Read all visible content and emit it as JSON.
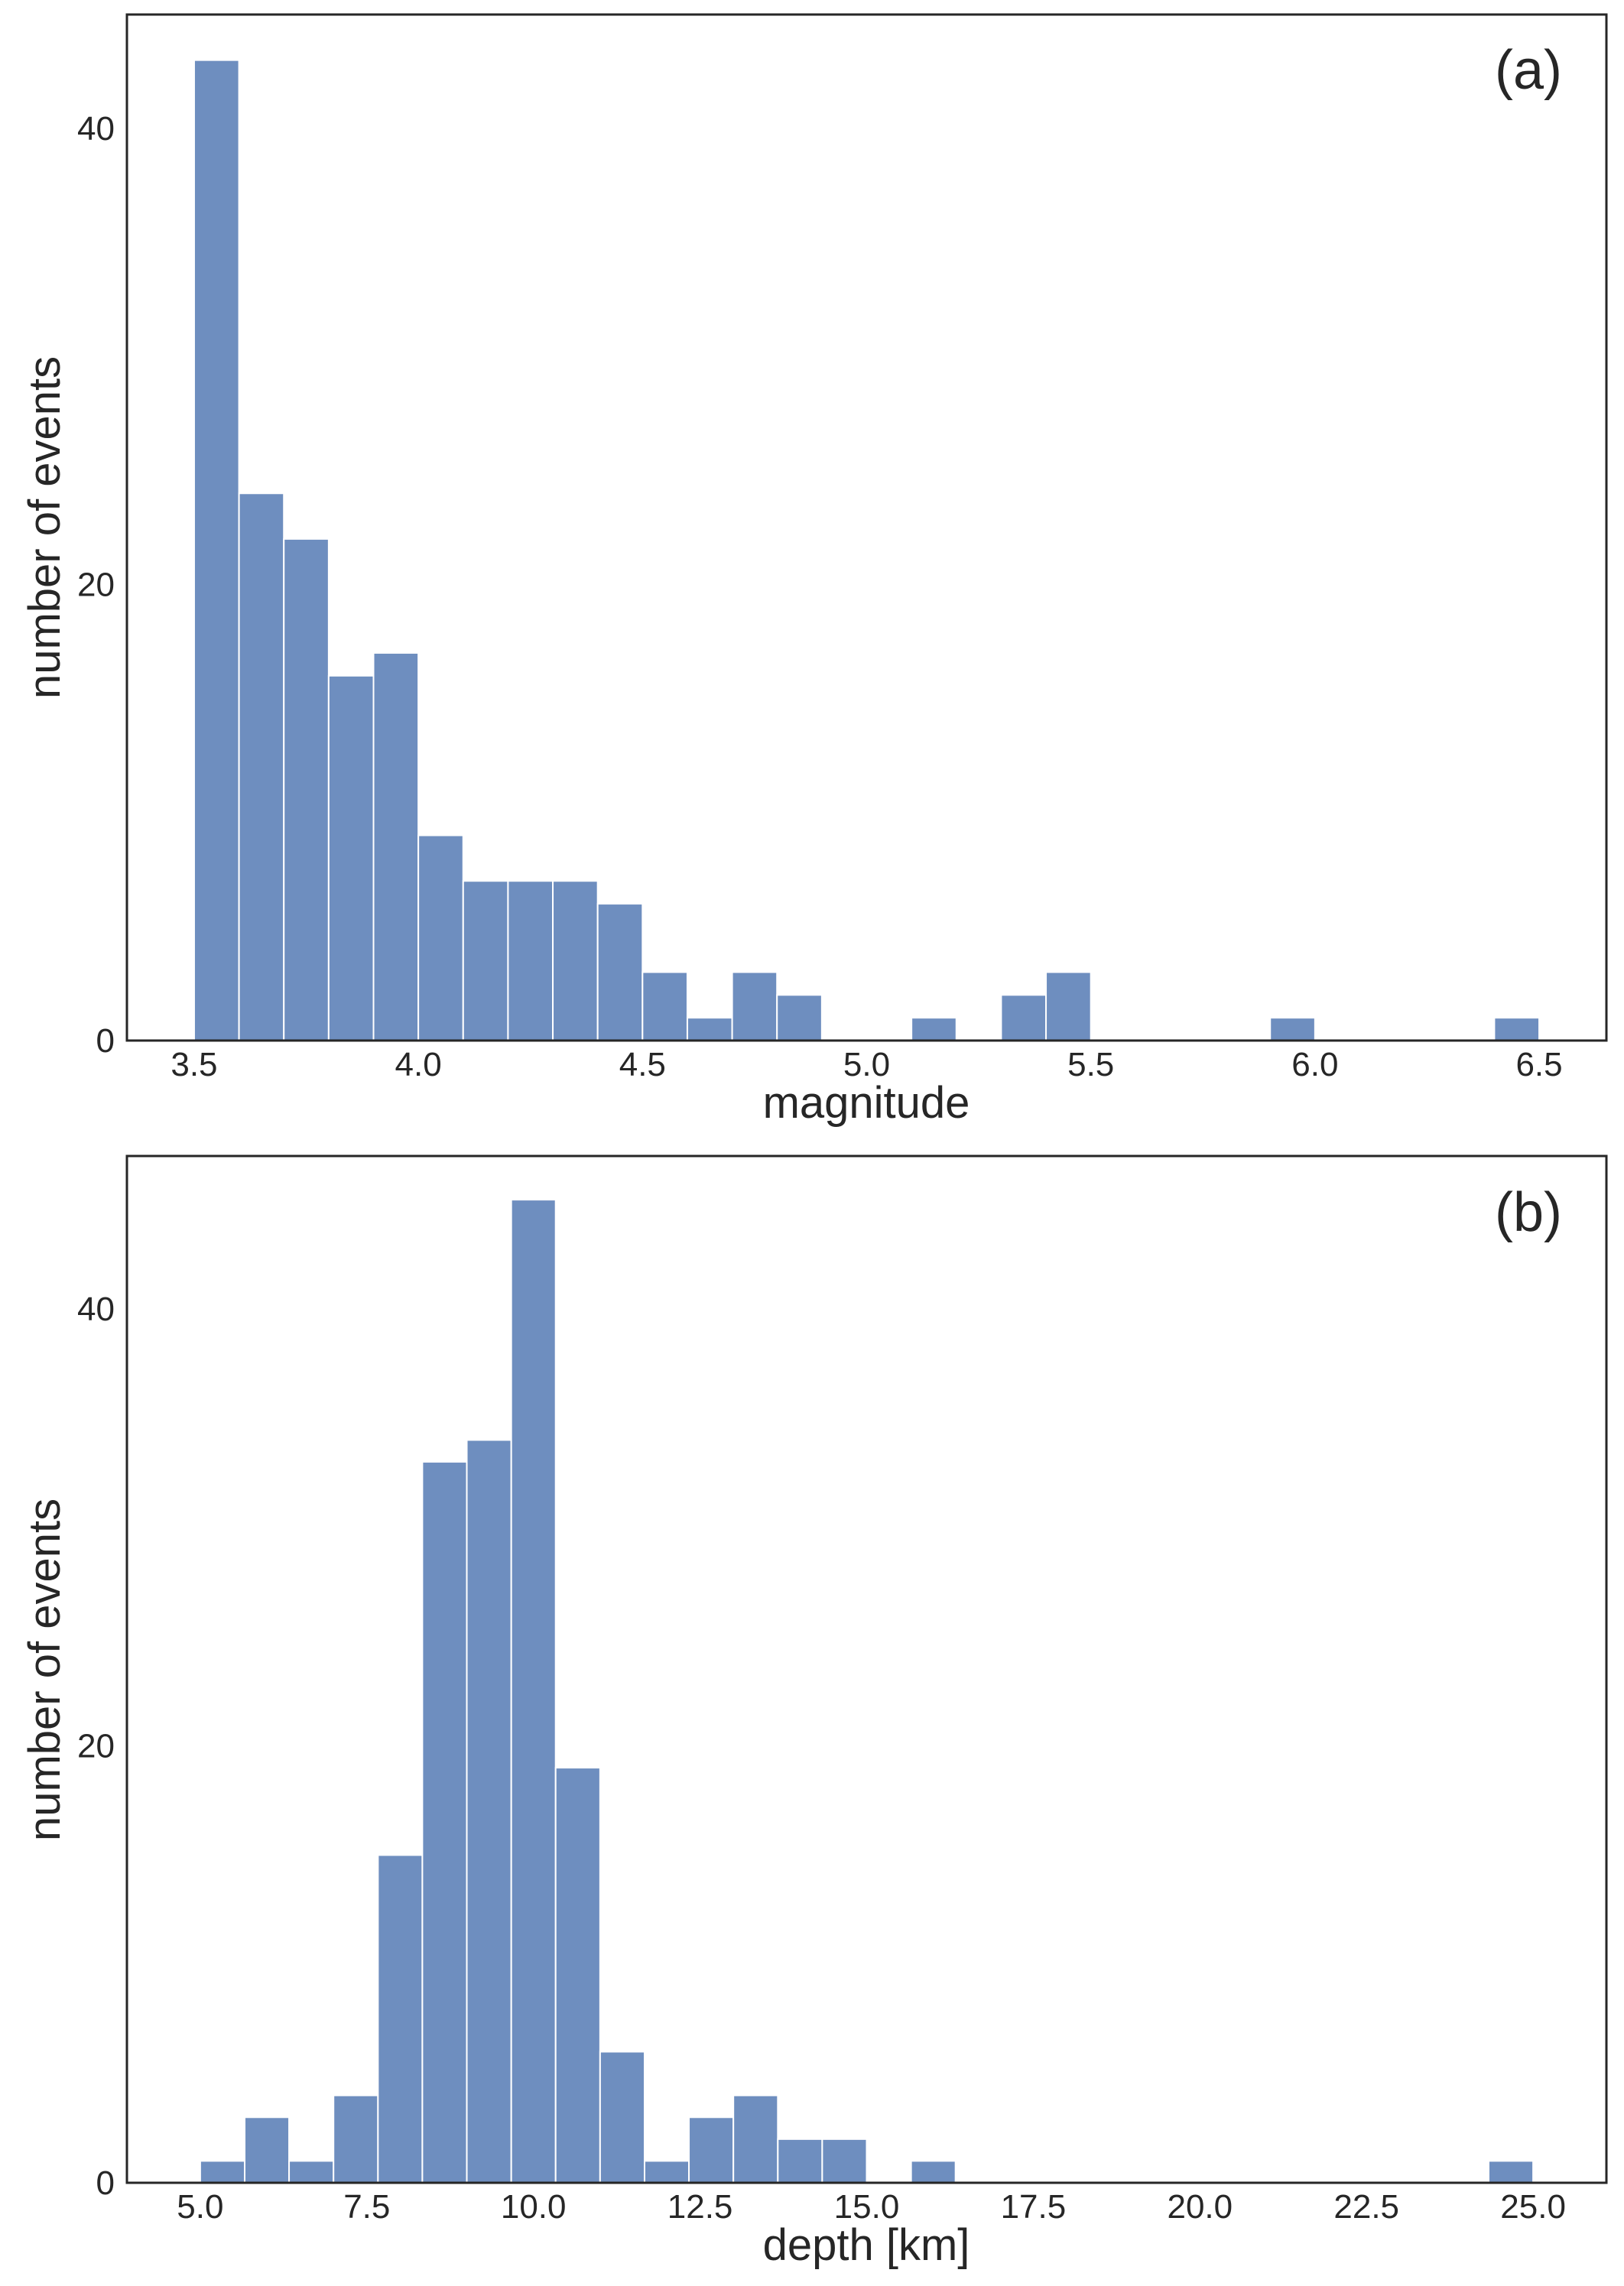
{
  "figure": {
    "colors": {
      "bar": "#6e8ebf",
      "bar_edge": "#ffffff",
      "axes": "#262626",
      "background": "#ffffff"
    }
  },
  "chart_data": [
    {
      "type": "bar",
      "panel_label": "(a)",
      "title": "",
      "xlabel": "magnitude",
      "ylabel": "number of events",
      "xlim": [
        3.35,
        6.65
      ],
      "ylim": [
        0,
        45
      ],
      "xticks": [
        3.5,
        4.0,
        4.5,
        5.0,
        5.5,
        6.0,
        6.5
      ],
      "xtick_labels": [
        "3.5",
        "4.0",
        "4.5",
        "5.0",
        "5.5",
        "6.0",
        "6.5"
      ],
      "yticks": [
        0,
        20,
        40
      ],
      "ytick_labels": [
        "0",
        "20",
        "40"
      ],
      "grid": false,
      "bin_edges": [
        3.5,
        3.6,
        3.7,
        3.8,
        3.9,
        4.0,
        4.1,
        4.2,
        4.3,
        4.4,
        4.5,
        4.6,
        4.7,
        4.8,
        4.9,
        5.0,
        5.1,
        5.2,
        5.3,
        5.4,
        5.5,
        5.6,
        5.7,
        5.8,
        5.9,
        6.0,
        6.1,
        6.2,
        6.3,
        6.4,
        6.5
      ],
      "values": [
        43,
        24,
        22,
        16,
        17,
        9,
        7,
        7,
        7,
        6,
        3,
        1,
        3,
        2,
        0,
        0,
        1,
        0,
        2,
        3,
        0,
        0,
        0,
        0,
        1,
        0,
        0,
        0,
        0,
        1
      ]
    },
    {
      "type": "bar",
      "panel_label": "(b)",
      "title": "",
      "xlabel": "depth [km]",
      "ylabel": "number of events",
      "xlim": [
        3.9,
        26.1
      ],
      "ylim": [
        0,
        47
      ],
      "xticks": [
        5.0,
        7.5,
        10.0,
        12.5,
        15.0,
        17.5,
        20.0,
        22.5,
        25.0
      ],
      "xtick_labels": [
        "5.0",
        "7.5",
        "10.0",
        "12.5",
        "15.0",
        "17.5",
        "20.0",
        "22.5",
        "25.0"
      ],
      "yticks": [
        0,
        20,
        40
      ],
      "ytick_labels": [
        "0",
        "20",
        "40"
      ],
      "grid": false,
      "bin_edges": [
        5.0,
        5.667,
        6.333,
        7.0,
        7.667,
        8.333,
        9.0,
        9.667,
        10.333,
        11.0,
        11.667,
        12.333,
        13.0,
        13.667,
        14.333,
        15.0,
        15.667,
        16.333,
        17.0,
        17.667,
        18.333,
        19.0,
        19.667,
        20.333,
        21.0,
        21.667,
        22.333,
        23.0,
        23.667,
        24.333,
        25.0
      ],
      "values": [
        1,
        3,
        1,
        4,
        15,
        33,
        34,
        45,
        19,
        6,
        1,
        3,
        4,
        2,
        2,
        0,
        1,
        0,
        0,
        0,
        0,
        0,
        0,
        0,
        0,
        0,
        0,
        0,
        0,
        1
      ]
    }
  ]
}
